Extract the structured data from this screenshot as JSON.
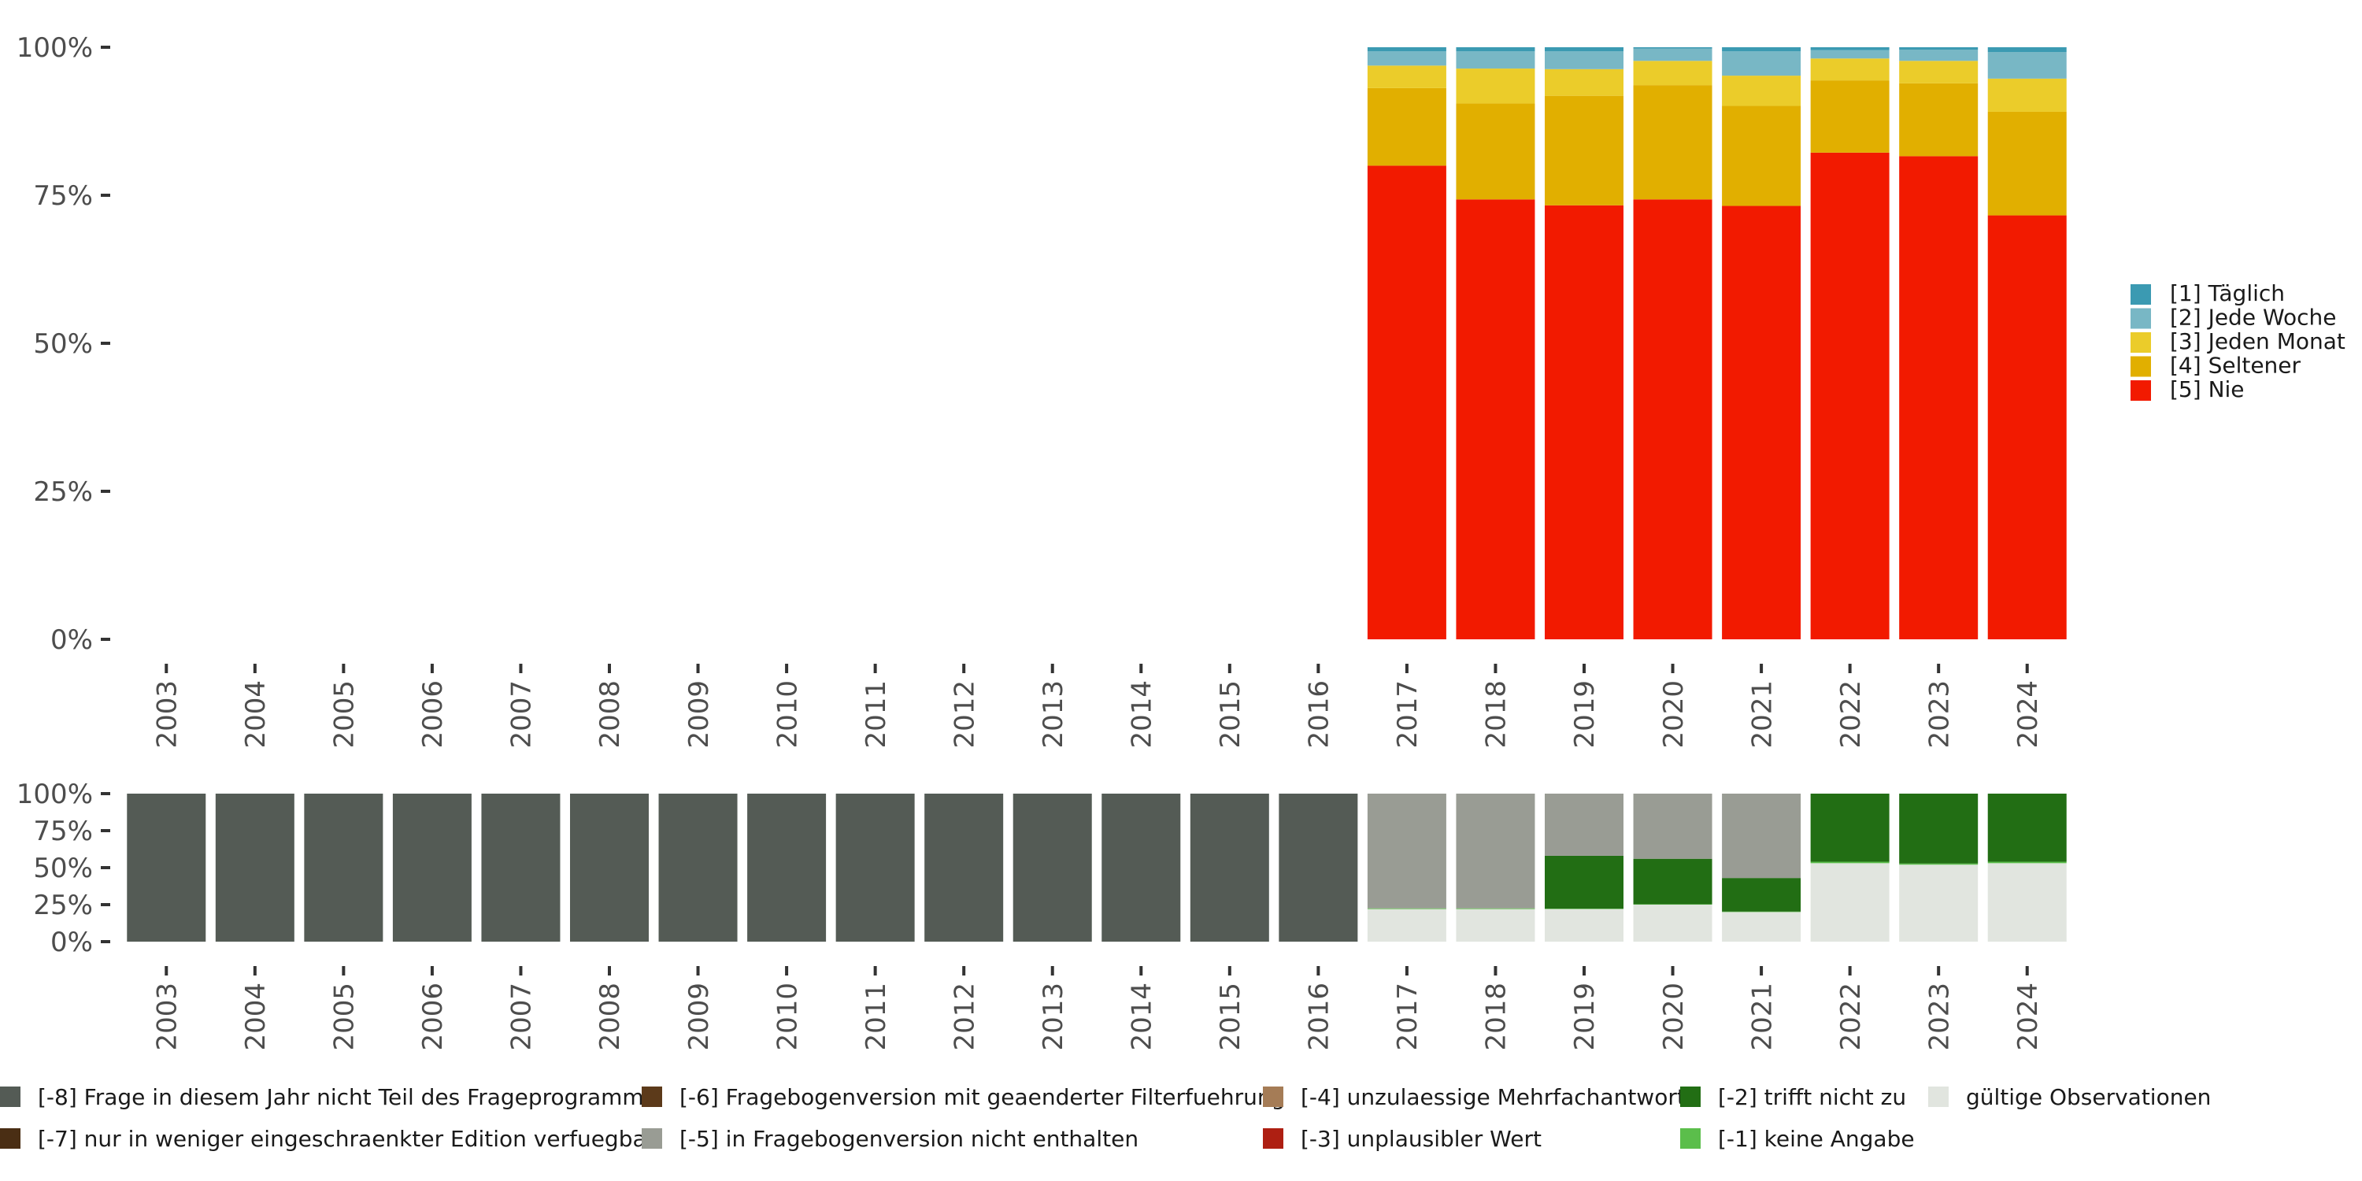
{
  "chart_data": [
    {
      "type": "bar",
      "stacked": true,
      "title": "",
      "xlabel": "",
      "ylabel": "",
      "ylim": [
        0,
        1
      ],
      "y_ticks": [
        "0%",
        "25%",
        "50%",
        "75%",
        "100%"
      ],
      "categories": [
        "2003",
        "2004",
        "2005",
        "2006",
        "2007",
        "2008",
        "2009",
        "2010",
        "2011",
        "2012",
        "2013",
        "2014",
        "2015",
        "2016",
        "2017",
        "2018",
        "2019",
        "2020",
        "2021",
        "2022",
        "2023",
        "2024"
      ],
      "legend_position": "right",
      "series": [
        {
          "name": "[5] Nie",
          "color": "#F21A00",
          "values": [
            null,
            null,
            null,
            null,
            null,
            null,
            null,
            null,
            null,
            null,
            null,
            null,
            null,
            null,
            0.8,
            0.743,
            0.733,
            0.743,
            0.732,
            0.822,
            0.816,
            0.716
          ]
        },
        {
          "name": "[4] Seltener",
          "color": "#E1AF00",
          "values": [
            null,
            null,
            null,
            null,
            null,
            null,
            null,
            null,
            null,
            null,
            null,
            null,
            null,
            null,
            0.131,
            0.162,
            0.185,
            0.193,
            0.169,
            0.122,
            0.123,
            0.175
          ]
        },
        {
          "name": "[3] Jeden Monat",
          "color": "#EBCC2A",
          "values": [
            null,
            null,
            null,
            null,
            null,
            null,
            null,
            null,
            null,
            null,
            null,
            null,
            null,
            null,
            0.038,
            0.059,
            0.045,
            0.041,
            0.051,
            0.037,
            0.038,
            0.056
          ]
        },
        {
          "name": "[2] Jede Woche",
          "color": "#78B7C5",
          "values": [
            null,
            null,
            null,
            null,
            null,
            null,
            null,
            null,
            null,
            null,
            null,
            null,
            null,
            null,
            0.024,
            0.029,
            0.03,
            0.021,
            0.041,
            0.014,
            0.019,
            0.045
          ]
        },
        {
          "name": "[1] Täglich",
          "color": "#3B9AB2",
          "values": [
            null,
            null,
            null,
            null,
            null,
            null,
            null,
            null,
            null,
            null,
            null,
            null,
            null,
            null,
            0.007,
            0.007,
            0.007,
            0.002,
            0.007,
            0.005,
            0.004,
            0.008
          ]
        }
      ]
    },
    {
      "type": "bar",
      "stacked": true,
      "title": "",
      "xlabel": "",
      "ylabel": "",
      "ylim": [
        0,
        1
      ],
      "y_ticks": [
        "0%",
        "25%",
        "50%",
        "75%",
        "100%"
      ],
      "categories": [
        "2003",
        "2004",
        "2005",
        "2006",
        "2007",
        "2008",
        "2009",
        "2010",
        "2011",
        "2012",
        "2013",
        "2014",
        "2015",
        "2016",
        "2017",
        "2018",
        "2019",
        "2020",
        "2021",
        "2022",
        "2023",
        "2024"
      ],
      "legend_position": "bottom",
      "series": [
        {
          "name": "gültige Observationen",
          "color": "#E1E5DF",
          "values": [
            0,
            0,
            0,
            0,
            0,
            0,
            0,
            0,
            0,
            0,
            0,
            0,
            0,
            0,
            0.22,
            0.22,
            0.22,
            0.25,
            0.2,
            0.53,
            0.52,
            0.53
          ]
        },
        {
          "name": "[-1] keine Angabe",
          "color": "#5BBE4B",
          "values": [
            0,
            0,
            0,
            0,
            0,
            0,
            0,
            0,
            0,
            0,
            0,
            0,
            0,
            0,
            0.005,
            0.005,
            0.003,
            0.003,
            0.003,
            0.01,
            0.008,
            0.01
          ]
        },
        {
          "name": "[-2] trifft nicht zu",
          "color": "#226E14",
          "values": [
            0,
            0,
            0,
            0,
            0,
            0,
            0,
            0,
            0,
            0,
            0,
            0,
            0,
            0,
            0,
            0,
            0.357,
            0.307,
            0.227,
            0.46,
            0.472,
            0.46
          ]
        },
        {
          "name": "[-3] unplausibler Wert",
          "color": "#AE1F12",
          "values": [
            0,
            0,
            0,
            0,
            0,
            0,
            0,
            0,
            0,
            0,
            0,
            0,
            0,
            0,
            0,
            0,
            0,
            0,
            0,
            0,
            0,
            0
          ]
        },
        {
          "name": "[-4] unzulaessige Mehrfachantwort",
          "color": "#A57C56",
          "values": [
            0,
            0,
            0,
            0,
            0,
            0,
            0,
            0,
            0,
            0,
            0,
            0,
            0,
            0,
            0,
            0,
            0,
            0,
            0,
            0,
            0,
            0
          ]
        },
        {
          "name": "[-5] in Fragebogenversion nicht enthalten",
          "color": "#999C94",
          "values": [
            0,
            0,
            0,
            0,
            0,
            0,
            0,
            0,
            0,
            0,
            0,
            0,
            0,
            0,
            0.775,
            0.775,
            0.42,
            0.44,
            0.57,
            0,
            0,
            0
          ]
        },
        {
          "name": "[-6] Fragebogenversion mit geaenderter Filterfuehrung",
          "color": "#5C3A1A",
          "values": [
            0,
            0,
            0,
            0,
            0,
            0,
            0,
            0,
            0,
            0,
            0,
            0,
            0,
            0,
            0,
            0,
            0,
            0,
            0,
            0,
            0,
            0
          ]
        },
        {
          "name": "[-7] nur in weniger eingeschraenkter Edition verfuegbar",
          "color": "#4A2E14",
          "values": [
            0,
            0,
            0,
            0,
            0,
            0,
            0,
            0,
            0,
            0,
            0,
            0,
            0,
            0,
            0,
            0,
            0,
            0,
            0,
            0,
            0,
            0
          ]
        },
        {
          "name": "[-8] Frage in diesem Jahr nicht Teil des Frageprogramms",
          "color": "#545B55",
          "values": [
            1,
            1,
            1,
            1,
            1,
            1,
            1,
            1,
            1,
            1,
            1,
            1,
            1,
            1,
            0,
            0,
            0,
            0,
            0,
            0,
            0,
            0
          ]
        }
      ]
    }
  ],
  "top_legend_order": [
    "[1] Täglich",
    "[2] Jede Woche",
    "[3] Jeden Monat",
    "[4] Seltener",
    "[5] Nie"
  ],
  "bottom_legend_order": [
    "[-8] Frage in diesem Jahr nicht Teil des Frageprogramms",
    "[-7] nur in weniger eingeschraenkter Edition verfuegbar",
    "[-6] Fragebogenversion mit geaenderter Filterfuehrung",
    "[-5] in Fragebogenversion nicht enthalten",
    "[-4] unzulaessige Mehrfachantwort",
    "[-3] unplausibler Wert",
    "[-2] trifft nicht zu",
    "[-1] keine Angabe",
    "gültige Observationen"
  ],
  "colors": {
    "axis_text": "#4D4D4D",
    "tick": "#333333"
  }
}
